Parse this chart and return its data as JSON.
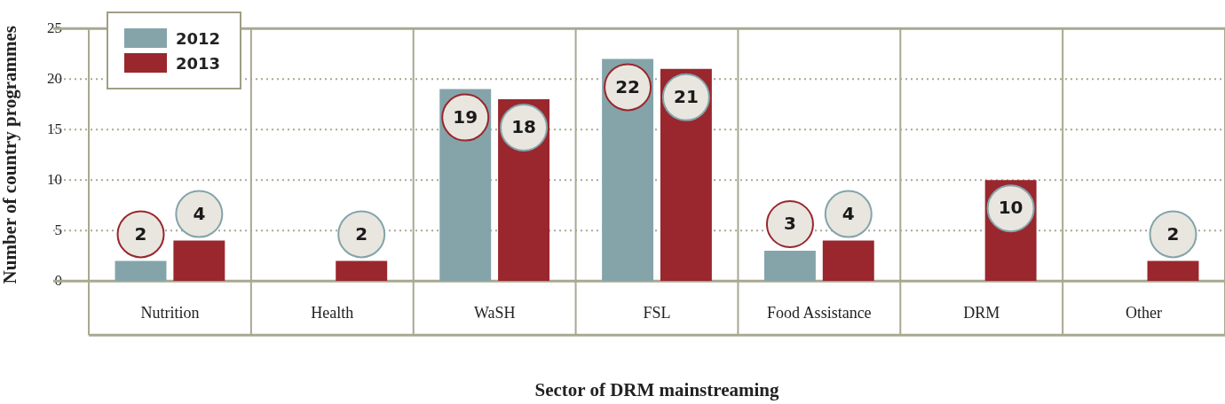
{
  "chart_data": {
    "type": "bar",
    "xlabel": "Sector of DRM mainstreaming",
    "ylabel": "Number of country programmes",
    "categories": [
      "Nutrition",
      "Health",
      "WaSH",
      "FSL",
      "Food Assistance",
      "DRM",
      "Other"
    ],
    "series": [
      {
        "name": "2012",
        "color": "#84a4aa",
        "values": [
          2,
          null,
          19,
          22,
          3,
          null,
          null
        ]
      },
      {
        "name": "2013",
        "color": "#99272d",
        "values": [
          4,
          2,
          18,
          21,
          4,
          10,
          2
        ]
      }
    ],
    "ylim": [
      0,
      25
    ],
    "yticks": [
      0,
      5,
      10,
      15,
      20,
      25
    ],
    "grid": true,
    "legend": "top left",
    "data_labels": true
  }
}
